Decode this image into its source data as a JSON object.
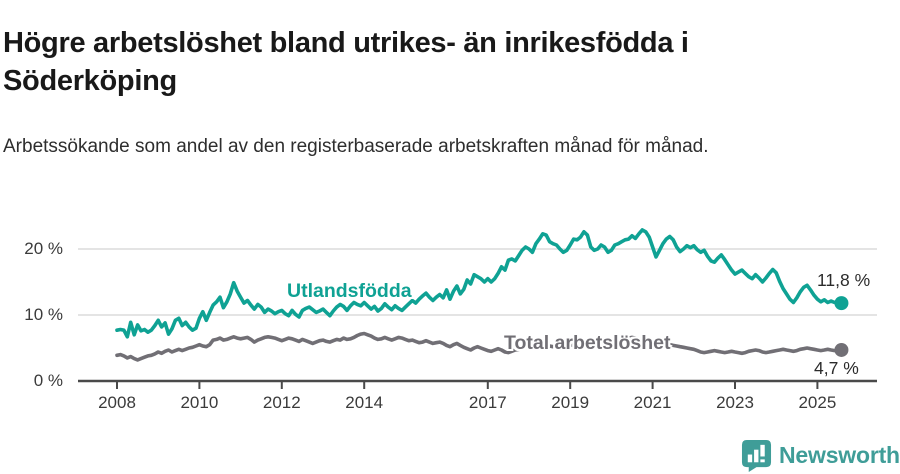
{
  "header": {
    "title": "Högre arbetslöshet bland utrikes- än inrikesfödda i Söderköping",
    "subtitle": "Arbetssökande som andel av den registerbaserade arbetskraften månad för månad."
  },
  "footer": {
    "brand": "Newsworthy"
  },
  "colors": {
    "accent_teal": "#0fa294",
    "neutral_gray": "#716f75",
    "grid": "#dcdcdc",
    "axis": "#4a4a4a",
    "logo_teal": "#3f9d98"
  },
  "chart_data": {
    "type": "line",
    "title": "Högre arbetslöshet bland utrikes- än inrikesfödda i Söderköping",
    "subtitle": "Arbetssökande som andel av den registerbaserade arbetskraften månad för månad.",
    "x_unit": "month",
    "x_start": "2008-01",
    "x_end": "2025-08",
    "x_ticks": [
      2008,
      2010,
      2012,
      2014,
      2017,
      2019,
      2021,
      2023,
      2025
    ],
    "y_ticks": [
      {
        "value": 20,
        "label": "20 %"
      },
      {
        "value": 10,
        "label": "10 %"
      },
      {
        "value": 0,
        "label": "0 %"
      }
    ],
    "ylim": [
      0,
      24
    ],
    "grid": "horizontal",
    "legend_position": "inline-labels",
    "series": [
      {
        "name": "Utlandsfödda",
        "color": "#0fa294",
        "end_label": "11,8 %",
        "end_value": 11.8,
        "values": [
          7.7,
          7.8,
          7.7,
          6.7,
          8.9,
          7.0,
          8.5,
          7.6,
          7.8,
          7.4,
          7.7,
          8.4,
          9.2,
          8.2,
          8.8,
          7.1,
          7.9,
          9.2,
          9.5,
          8.4,
          8.9,
          8.2,
          7.7,
          8.0,
          9.5,
          10.5,
          9.2,
          10.4,
          11.5,
          12.0,
          12.7,
          11.1,
          12.0,
          13.2,
          14.9,
          13.6,
          12.7,
          11.8,
          12.2,
          11.5,
          10.9,
          11.6,
          11.2,
          10.4,
          10.9,
          10.6,
          10.2,
          10.5,
          10.7,
          10.2,
          9.9,
          10.7,
          10.1,
          9.7,
          10.7,
          11.0,
          11.2,
          10.8,
          10.4,
          10.6,
          10.9,
          10.4,
          9.9,
          10.6,
          11.2,
          11.6,
          11.3,
          10.7,
          11.4,
          11.9,
          11.6,
          11.4,
          11.9,
          11.4,
          10.9,
          11.3,
          10.6,
          11.0,
          11.7,
          11.2,
          10.8,
          11.4,
          11.0,
          10.7,
          11.2,
          11.7,
          12.2,
          11.8,
          12.4,
          12.9,
          13.3,
          12.7,
          12.2,
          12.7,
          13.1,
          12.6,
          13.8,
          12.4,
          13.6,
          14.4,
          13.2,
          13.9,
          15.3,
          14.7,
          16.1,
          15.8,
          15.5,
          15.0,
          15.5,
          15.0,
          15.5,
          16.3,
          17.3,
          16.8,
          18.3,
          18.5,
          18.2,
          19.0,
          19.8,
          20.3,
          20.0,
          19.5,
          20.8,
          21.5,
          22.3,
          22.1,
          21.1,
          20.8,
          20.6,
          20.0,
          19.5,
          19.8,
          20.6,
          21.5,
          21.4,
          21.8,
          22.6,
          22.1,
          20.3,
          19.8,
          20.0,
          20.6,
          20.3,
          19.5,
          19.8,
          20.6,
          20.8,
          21.1,
          21.4,
          21.5,
          22.0,
          21.6,
          22.3,
          22.9,
          22.6,
          21.8,
          20.3,
          18.8,
          19.8,
          20.8,
          21.5,
          21.9,
          21.4,
          20.3,
          19.6,
          20.0,
          20.5,
          20.2,
          20.5,
          19.9,
          19.5,
          19.8,
          18.9,
          18.2,
          18.0,
          18.6,
          19.1,
          18.4,
          17.6,
          16.8,
          16.2,
          16.5,
          16.8,
          16.3,
          15.8,
          15.5,
          16.1,
          15.6,
          15.0,
          15.6,
          16.3,
          16.9,
          16.4,
          15.1,
          14.0,
          13.2,
          12.4,
          11.9,
          12.6,
          13.5,
          14.2,
          14.5,
          13.8,
          13.0,
          12.4,
          12.0,
          12.3,
          11.9,
          12.1,
          11.9,
          12.1,
          11.8
        ]
      },
      {
        "name": "Total arbetslöshet",
        "color": "#716f75",
        "end_label": "4,7 %",
        "end_value": 4.7,
        "values": [
          3.9,
          4.0,
          3.8,
          3.5,
          3.7,
          3.4,
          3.2,
          3.4,
          3.6,
          3.8,
          3.9,
          4.1,
          4.4,
          4.2,
          4.5,
          4.7,
          4.4,
          4.6,
          4.8,
          4.6,
          4.8,
          5.0,
          5.1,
          5.3,
          5.5,
          5.3,
          5.2,
          5.5,
          6.2,
          6.3,
          6.5,
          6.2,
          6.3,
          6.5,
          6.7,
          6.5,
          6.4,
          6.5,
          6.6,
          6.3,
          5.9,
          6.2,
          6.4,
          6.6,
          6.7,
          6.6,
          6.5,
          6.3,
          6.1,
          6.3,
          6.5,
          6.4,
          6.2,
          6.0,
          6.3,
          6.1,
          5.9,
          5.7,
          5.9,
          6.1,
          6.2,
          6.0,
          5.9,
          6.1,
          6.3,
          6.2,
          6.5,
          6.3,
          6.4,
          6.6,
          6.9,
          7.1,
          7.2,
          7.0,
          6.8,
          6.5,
          6.3,
          6.4,
          6.6,
          6.4,
          6.2,
          6.4,
          6.6,
          6.5,
          6.3,
          6.1,
          6.2,
          6.0,
          5.8,
          5.9,
          6.1,
          5.9,
          5.7,
          5.8,
          5.9,
          5.7,
          5.4,
          5.2,
          5.5,
          5.7,
          5.4,
          5.1,
          4.9,
          4.7,
          5.0,
          5.2,
          5.0,
          4.8,
          4.6,
          4.5,
          4.7,
          4.9,
          4.7,
          4.4,
          4.3,
          4.5,
          4.7,
          4.8,
          4.9,
          5.0,
          5.1,
          5.0,
          4.9,
          5.0,
          5.2,
          5.1,
          5.3,
          5.2,
          5.1,
          5.2,
          5.3,
          5.4,
          5.5,
          5.4,
          5.3,
          5.4,
          5.5,
          5.6,
          5.7,
          5.6,
          5.5,
          5.6,
          5.7,
          5.8,
          5.8,
          5.9,
          6.0,
          6.2,
          6.4,
          6.5,
          6.6,
          6.5,
          6.4,
          6.3,
          6.2,
          6.1,
          6.0,
          5.9,
          5.8,
          5.7,
          5.6,
          5.5,
          5.4,
          5.3,
          5.2,
          5.1,
          5.0,
          4.9,
          4.8,
          4.6,
          4.4,
          4.3,
          4.4,
          4.5,
          4.6,
          4.5,
          4.4,
          4.3,
          4.4,
          4.5,
          4.4,
          4.3,
          4.2,
          4.3,
          4.5,
          4.6,
          4.7,
          4.6,
          4.4,
          4.3,
          4.4,
          4.5,
          4.6,
          4.7,
          4.8,
          4.7,
          4.6,
          4.5,
          4.6,
          4.8,
          4.9,
          5.0,
          4.9,
          4.8,
          4.7,
          4.6,
          4.7,
          4.8,
          4.7,
          4.6,
          4.7,
          4.7
        ]
      }
    ]
  }
}
